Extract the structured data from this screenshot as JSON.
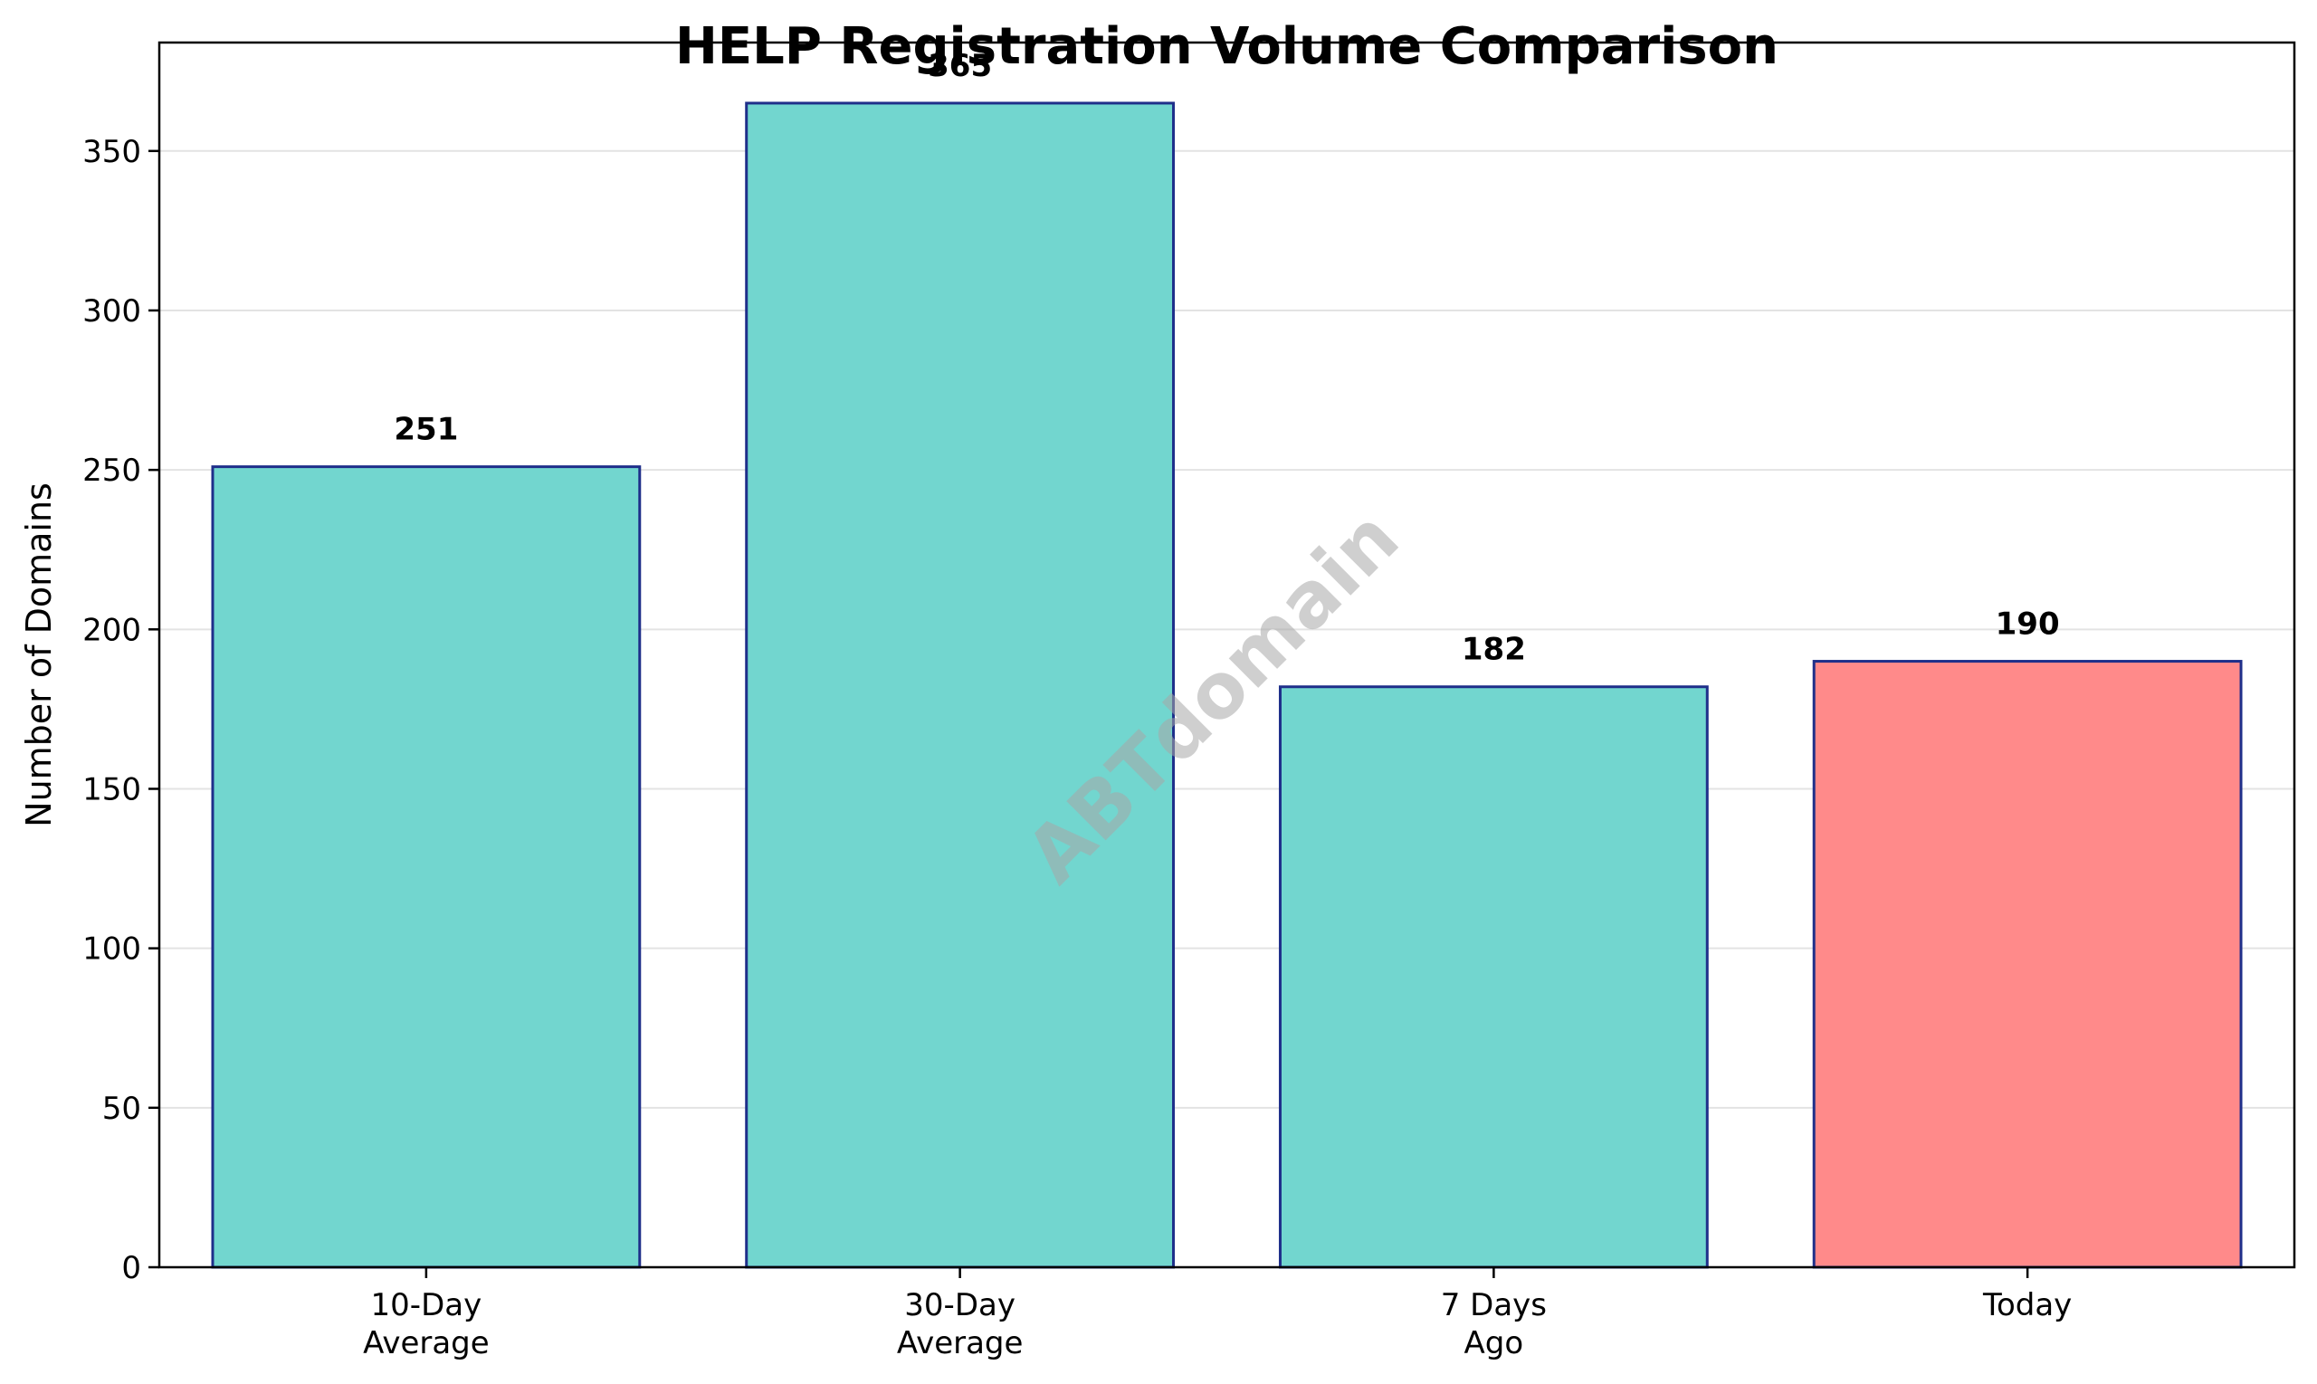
{
  "chart_data": {
    "type": "bar",
    "title": "HELP Registration Volume Comparison",
    "xlabel": "",
    "ylabel": "Number of Domains",
    "categories": [
      [
        "10-Day",
        "Average"
      ],
      [
        "30-Day",
        "Average"
      ],
      [
        "7 Days",
        "Ago"
      ],
      [
        "Today"
      ]
    ],
    "values": [
      251,
      365,
      182,
      190
    ],
    "bar_colors": [
      "#72d6cf",
      "#72d6cf",
      "#72d6cf",
      "#ff8a8a"
    ],
    "edge_color": "#1f2f8a",
    "ylim": [
      0,
      384
    ],
    "yticks": [
      0,
      50,
      100,
      150,
      200,
      250,
      300,
      350
    ],
    "grid": "y",
    "watermark": "ABTdomain"
  }
}
